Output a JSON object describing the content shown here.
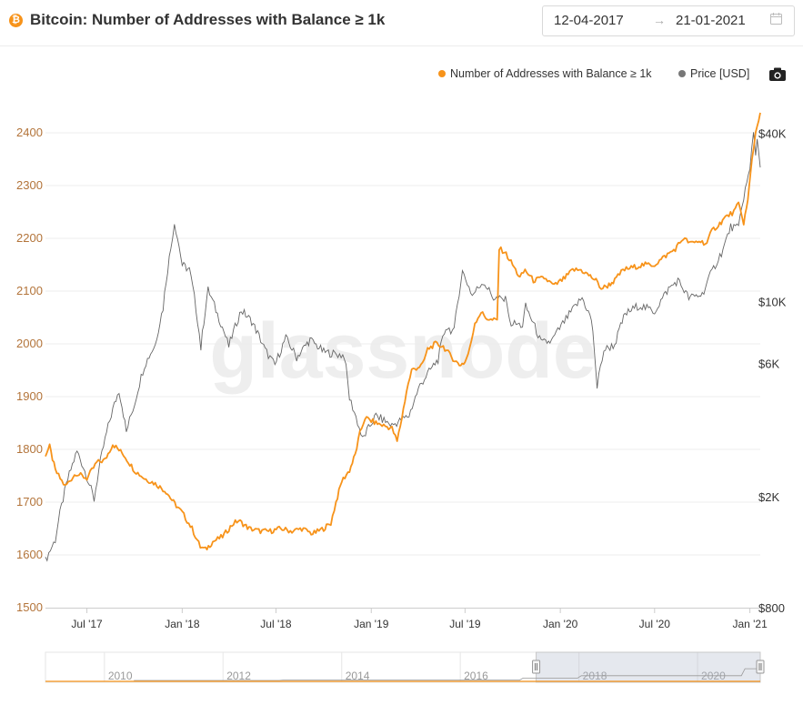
{
  "header": {
    "coin_symbol": "₿",
    "title": "Bitcoin: Number of Addresses with Balance ≥ 1k",
    "date_start": "12-04-2017",
    "date_separator": "→",
    "date_end": "21-01-2021"
  },
  "watermark": "glassnode",
  "colors": {
    "addresses": "#f7931a",
    "price": "#666666",
    "grid": "#ececec",
    "left_axis_text": "#b3743a",
    "right_axis_text": "#333333"
  },
  "chart_data": {
    "type": "line",
    "title": "Bitcoin: Number of Addresses with Balance ≥ 1k",
    "x_range": [
      "2017-04-12",
      "2021-01-21"
    ],
    "x_ticks": [
      {
        "date": "2017-07-01",
        "label": "Jul '17"
      },
      {
        "date": "2018-01-01",
        "label": "Jan '18"
      },
      {
        "date": "2018-07-01",
        "label": "Jul '18"
      },
      {
        "date": "2019-01-01",
        "label": "Jan '19"
      },
      {
        "date": "2019-07-01",
        "label": "Jul '19"
      },
      {
        "date": "2020-01-01",
        "label": "Jan '20"
      },
      {
        "date": "2020-07-01",
        "label": "Jul '20"
      },
      {
        "date": "2021-01-01",
        "label": "Jan '21"
      }
    ],
    "y_left": {
      "label": "",
      "range": [
        1500,
        2450
      ],
      "ticks": [
        1500,
        1600,
        1700,
        1800,
        1900,
        2000,
        2100,
        2200,
        2300,
        2400
      ]
    },
    "y_right": {
      "label": "Price [USD]",
      "scale": "log",
      "range": [
        800,
        50000
      ],
      "ticks": [
        {
          "value": 800,
          "label": "$800"
        },
        {
          "value": 2000,
          "label": "$2K"
        },
        {
          "value": 6000,
          "label": "$6K"
        },
        {
          "value": 10000,
          "label": "$10K"
        },
        {
          "value": 40000,
          "label": "$40K"
        }
      ]
    },
    "series": [
      {
        "name": "Number of Addresses with Balance ≥ 1k",
        "axis": "left",
        "points": [
          [
            "2017-04-12",
            1790
          ],
          [
            "2017-04-20",
            1805
          ],
          [
            "2017-05-01",
            1760
          ],
          [
            "2017-05-20",
            1730
          ],
          [
            "2017-06-10",
            1755
          ],
          [
            "2017-07-01",
            1745
          ],
          [
            "2017-07-20",
            1775
          ],
          [
            "2017-08-05",
            1780
          ],
          [
            "2017-08-20",
            1810
          ],
          [
            "2017-09-10",
            1790
          ],
          [
            "2017-10-01",
            1760
          ],
          [
            "2017-10-20",
            1745
          ],
          [
            "2017-11-10",
            1735
          ],
          [
            "2017-12-01",
            1720
          ],
          [
            "2017-12-15",
            1700
          ],
          [
            "2018-01-01",
            1680
          ],
          [
            "2018-01-20",
            1650
          ],
          [
            "2018-02-05",
            1615
          ],
          [
            "2018-02-15",
            1610
          ],
          [
            "2018-03-01",
            1625
          ],
          [
            "2018-03-20",
            1635
          ],
          [
            "2018-04-10",
            1660
          ],
          [
            "2018-04-20",
            1665
          ],
          [
            "2018-05-10",
            1650
          ],
          [
            "2018-06-01",
            1645
          ],
          [
            "2018-06-20",
            1645
          ],
          [
            "2018-07-10",
            1650
          ],
          [
            "2018-08-01",
            1645
          ],
          [
            "2018-08-20",
            1650
          ],
          [
            "2018-09-10",
            1640
          ],
          [
            "2018-10-01",
            1650
          ],
          [
            "2018-10-15",
            1660
          ],
          [
            "2018-10-25",
            1700
          ],
          [
            "2018-11-05",
            1740
          ],
          [
            "2018-11-20",
            1760
          ],
          [
            "2018-12-01",
            1790
          ],
          [
            "2018-12-10",
            1830
          ],
          [
            "2018-12-20",
            1860
          ],
          [
            "2019-01-10",
            1850
          ],
          [
            "2019-01-25",
            1845
          ],
          [
            "2019-02-10",
            1840
          ],
          [
            "2019-02-20",
            1815
          ],
          [
            "2019-03-01",
            1860
          ],
          [
            "2019-03-10",
            1910
          ],
          [
            "2019-03-20",
            1950
          ],
          [
            "2019-04-10",
            1960
          ],
          [
            "2019-04-20",
            1990
          ],
          [
            "2019-05-05",
            2000
          ],
          [
            "2019-05-20",
            1995
          ],
          [
            "2019-06-05",
            1975
          ],
          [
            "2019-06-20",
            1960
          ],
          [
            "2019-07-01",
            1965
          ],
          [
            "2019-07-10",
            1990
          ],
          [
            "2019-07-20",
            2040
          ],
          [
            "2019-08-01",
            2060
          ],
          [
            "2019-08-10",
            2050
          ],
          [
            "2019-08-20",
            2045
          ],
          [
            "2019-09-01",
            2045
          ],
          [
            "2019-09-05",
            2180
          ],
          [
            "2019-09-15",
            2175
          ],
          [
            "2019-10-01",
            2150
          ],
          [
            "2019-10-15",
            2125
          ],
          [
            "2019-10-25",
            2140
          ],
          [
            "2019-11-10",
            2120
          ],
          [
            "2019-12-01",
            2125
          ],
          [
            "2019-12-20",
            2110
          ],
          [
            "2020-01-10",
            2125
          ],
          [
            "2020-01-25",
            2140
          ],
          [
            "2020-02-10",
            2140
          ],
          [
            "2020-02-25",
            2130
          ],
          [
            "2020-03-10",
            2120
          ],
          [
            "2020-03-20",
            2105
          ],
          [
            "2020-04-01",
            2110
          ],
          [
            "2020-04-15",
            2120
          ],
          [
            "2020-05-01",
            2140
          ],
          [
            "2020-05-20",
            2145
          ],
          [
            "2020-06-10",
            2150
          ],
          [
            "2020-07-01",
            2150
          ],
          [
            "2020-07-20",
            2165
          ],
          [
            "2020-08-10",
            2180
          ],
          [
            "2020-08-25",
            2200
          ],
          [
            "2020-09-10",
            2190
          ],
          [
            "2020-09-25",
            2195
          ],
          [
            "2020-10-10",
            2190
          ],
          [
            "2020-10-20",
            2215
          ],
          [
            "2020-11-01",
            2225
          ],
          [
            "2020-11-15",
            2240
          ],
          [
            "2020-12-01",
            2250
          ],
          [
            "2020-12-10",
            2265
          ],
          [
            "2020-12-20",
            2230
          ],
          [
            "2020-12-28",
            2270
          ],
          [
            "2021-01-05",
            2350
          ],
          [
            "2021-01-12",
            2400
          ],
          [
            "2021-01-21",
            2440
          ]
        ]
      },
      {
        "name": "Price [USD]",
        "axis": "right",
        "points": [
          [
            "2017-04-12",
            1180
          ],
          [
            "2017-05-01",
            1400
          ],
          [
            "2017-05-25",
            2300
          ],
          [
            "2017-06-12",
            2900
          ],
          [
            "2017-07-15",
            1950
          ],
          [
            "2017-08-05",
            3200
          ],
          [
            "2017-08-20",
            4100
          ],
          [
            "2017-09-01",
            4800
          ],
          [
            "2017-09-15",
            3400
          ],
          [
            "2017-10-01",
            4300
          ],
          [
            "2017-10-20",
            5900
          ],
          [
            "2017-11-10",
            7000
          ],
          [
            "2017-11-25",
            9500
          ],
          [
            "2017-12-10",
            15500
          ],
          [
            "2017-12-17",
            19200
          ],
          [
            "2018-01-01",
            13500
          ],
          [
            "2018-01-15",
            13000
          ],
          [
            "2018-02-06",
            6800
          ],
          [
            "2018-02-20",
            11000
          ],
          [
            "2018-03-10",
            9000
          ],
          [
            "2018-04-01",
            6900
          ],
          [
            "2018-04-25",
            9300
          ],
          [
            "2018-05-15",
            8500
          ],
          [
            "2018-06-10",
            6700
          ],
          [
            "2018-06-29",
            5900
          ],
          [
            "2018-07-20",
            7400
          ],
          [
            "2018-08-10",
            6300
          ],
          [
            "2018-09-05",
            7300
          ],
          [
            "2018-10-01",
            6600
          ],
          [
            "2018-11-10",
            6400
          ],
          [
            "2018-11-20",
            4500
          ],
          [
            "2018-12-15",
            3200
          ],
          [
            "2019-01-10",
            3900
          ],
          [
            "2019-02-10",
            3600
          ],
          [
            "2019-03-15",
            3900
          ],
          [
            "2019-04-05",
            5000
          ],
          [
            "2019-05-10",
            6200
          ],
          [
            "2019-05-25",
            8100
          ],
          [
            "2019-06-10",
            7800
          ],
          [
            "2019-06-26",
            12800
          ],
          [
            "2019-07-15",
            10500
          ],
          [
            "2019-08-05",
            11800
          ],
          [
            "2019-08-25",
            10300
          ],
          [
            "2019-09-20",
            10100
          ],
          [
            "2019-09-25",
            8400
          ],
          [
            "2019-10-20",
            8200
          ],
          [
            "2019-10-26",
            9600
          ],
          [
            "2019-11-25",
            7100
          ],
          [
            "2019-12-15",
            7200
          ],
          [
            "2020-01-15",
            8800
          ],
          [
            "2020-02-12",
            10300
          ],
          [
            "2020-03-01",
            8600
          ],
          [
            "2020-03-12",
            4900
          ],
          [
            "2020-03-25",
            6700
          ],
          [
            "2020-04-15",
            7000
          ],
          [
            "2020-05-05",
            9000
          ],
          [
            "2020-06-01",
            9700
          ],
          [
            "2020-07-01",
            9200
          ],
          [
            "2020-07-28",
            11100
          ],
          [
            "2020-08-15",
            11900
          ],
          [
            "2020-09-05",
            10300
          ],
          [
            "2020-10-01",
            10600
          ],
          [
            "2020-10-20",
            12800
          ],
          [
            "2020-11-10",
            15300
          ],
          [
            "2020-11-25",
            18500
          ],
          [
            "2020-12-10",
            18300
          ],
          [
            "2020-12-20",
            23800
          ],
          [
            "2021-01-01",
            29400
          ],
          [
            "2021-01-08",
            40500
          ],
          [
            "2021-01-12",
            34000
          ],
          [
            "2021-01-15",
            38000
          ],
          [
            "2021-01-21",
            31000
          ]
        ]
      }
    ],
    "navigator": {
      "years": [
        "2010",
        "2012",
        "2014",
        "2016",
        "2018",
        "2020"
      ],
      "selection": [
        "2017-04-12",
        "2021-01-21"
      ]
    }
  }
}
